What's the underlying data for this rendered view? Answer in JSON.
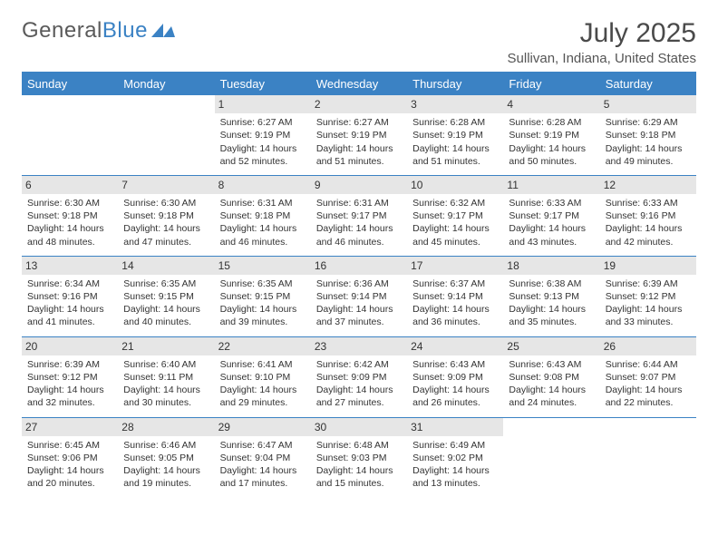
{
  "logo": {
    "text1": "General",
    "text2": "Blue"
  },
  "title": "July 2025",
  "location": "Sullivan, Indiana, United States",
  "colors": {
    "header_bg": "#3b82c4",
    "header_text": "#ffffff",
    "daynum_bg": "#e6e6e6",
    "border": "#3b82c4",
    "body_text": "#333333",
    "title_text": "#4a4a4a"
  },
  "weekdays": [
    "Sunday",
    "Monday",
    "Tuesday",
    "Wednesday",
    "Thursday",
    "Friday",
    "Saturday"
  ],
  "weeks": [
    [
      {
        "day": "",
        "sunrise": "",
        "sunset": "",
        "daylight_a": "",
        "daylight_b": "",
        "empty": true
      },
      {
        "day": "",
        "sunrise": "",
        "sunset": "",
        "daylight_a": "",
        "daylight_b": "",
        "empty": true
      },
      {
        "day": "1",
        "sunrise": "Sunrise: 6:27 AM",
        "sunset": "Sunset: 9:19 PM",
        "daylight_a": "Daylight: 14 hours",
        "daylight_b": "and 52 minutes."
      },
      {
        "day": "2",
        "sunrise": "Sunrise: 6:27 AM",
        "sunset": "Sunset: 9:19 PM",
        "daylight_a": "Daylight: 14 hours",
        "daylight_b": "and 51 minutes."
      },
      {
        "day": "3",
        "sunrise": "Sunrise: 6:28 AM",
        "sunset": "Sunset: 9:19 PM",
        "daylight_a": "Daylight: 14 hours",
        "daylight_b": "and 51 minutes."
      },
      {
        "day": "4",
        "sunrise": "Sunrise: 6:28 AM",
        "sunset": "Sunset: 9:19 PM",
        "daylight_a": "Daylight: 14 hours",
        "daylight_b": "and 50 minutes."
      },
      {
        "day": "5",
        "sunrise": "Sunrise: 6:29 AM",
        "sunset": "Sunset: 9:18 PM",
        "daylight_a": "Daylight: 14 hours",
        "daylight_b": "and 49 minutes."
      }
    ],
    [
      {
        "day": "6",
        "sunrise": "Sunrise: 6:30 AM",
        "sunset": "Sunset: 9:18 PM",
        "daylight_a": "Daylight: 14 hours",
        "daylight_b": "and 48 minutes."
      },
      {
        "day": "7",
        "sunrise": "Sunrise: 6:30 AM",
        "sunset": "Sunset: 9:18 PM",
        "daylight_a": "Daylight: 14 hours",
        "daylight_b": "and 47 minutes."
      },
      {
        "day": "8",
        "sunrise": "Sunrise: 6:31 AM",
        "sunset": "Sunset: 9:18 PM",
        "daylight_a": "Daylight: 14 hours",
        "daylight_b": "and 46 minutes."
      },
      {
        "day": "9",
        "sunrise": "Sunrise: 6:31 AM",
        "sunset": "Sunset: 9:17 PM",
        "daylight_a": "Daylight: 14 hours",
        "daylight_b": "and 46 minutes."
      },
      {
        "day": "10",
        "sunrise": "Sunrise: 6:32 AM",
        "sunset": "Sunset: 9:17 PM",
        "daylight_a": "Daylight: 14 hours",
        "daylight_b": "and 45 minutes."
      },
      {
        "day": "11",
        "sunrise": "Sunrise: 6:33 AM",
        "sunset": "Sunset: 9:17 PM",
        "daylight_a": "Daylight: 14 hours",
        "daylight_b": "and 43 minutes."
      },
      {
        "day": "12",
        "sunrise": "Sunrise: 6:33 AM",
        "sunset": "Sunset: 9:16 PM",
        "daylight_a": "Daylight: 14 hours",
        "daylight_b": "and 42 minutes."
      }
    ],
    [
      {
        "day": "13",
        "sunrise": "Sunrise: 6:34 AM",
        "sunset": "Sunset: 9:16 PM",
        "daylight_a": "Daylight: 14 hours",
        "daylight_b": "and 41 minutes."
      },
      {
        "day": "14",
        "sunrise": "Sunrise: 6:35 AM",
        "sunset": "Sunset: 9:15 PM",
        "daylight_a": "Daylight: 14 hours",
        "daylight_b": "and 40 minutes."
      },
      {
        "day": "15",
        "sunrise": "Sunrise: 6:35 AM",
        "sunset": "Sunset: 9:15 PM",
        "daylight_a": "Daylight: 14 hours",
        "daylight_b": "and 39 minutes."
      },
      {
        "day": "16",
        "sunrise": "Sunrise: 6:36 AM",
        "sunset": "Sunset: 9:14 PM",
        "daylight_a": "Daylight: 14 hours",
        "daylight_b": "and 37 minutes."
      },
      {
        "day": "17",
        "sunrise": "Sunrise: 6:37 AM",
        "sunset": "Sunset: 9:14 PM",
        "daylight_a": "Daylight: 14 hours",
        "daylight_b": "and 36 minutes."
      },
      {
        "day": "18",
        "sunrise": "Sunrise: 6:38 AM",
        "sunset": "Sunset: 9:13 PM",
        "daylight_a": "Daylight: 14 hours",
        "daylight_b": "and 35 minutes."
      },
      {
        "day": "19",
        "sunrise": "Sunrise: 6:39 AM",
        "sunset": "Sunset: 9:12 PM",
        "daylight_a": "Daylight: 14 hours",
        "daylight_b": "and 33 minutes."
      }
    ],
    [
      {
        "day": "20",
        "sunrise": "Sunrise: 6:39 AM",
        "sunset": "Sunset: 9:12 PM",
        "daylight_a": "Daylight: 14 hours",
        "daylight_b": "and 32 minutes."
      },
      {
        "day": "21",
        "sunrise": "Sunrise: 6:40 AM",
        "sunset": "Sunset: 9:11 PM",
        "daylight_a": "Daylight: 14 hours",
        "daylight_b": "and 30 minutes."
      },
      {
        "day": "22",
        "sunrise": "Sunrise: 6:41 AM",
        "sunset": "Sunset: 9:10 PM",
        "daylight_a": "Daylight: 14 hours",
        "daylight_b": "and 29 minutes."
      },
      {
        "day": "23",
        "sunrise": "Sunrise: 6:42 AM",
        "sunset": "Sunset: 9:09 PM",
        "daylight_a": "Daylight: 14 hours",
        "daylight_b": "and 27 minutes."
      },
      {
        "day": "24",
        "sunrise": "Sunrise: 6:43 AM",
        "sunset": "Sunset: 9:09 PM",
        "daylight_a": "Daylight: 14 hours",
        "daylight_b": "and 26 minutes."
      },
      {
        "day": "25",
        "sunrise": "Sunrise: 6:43 AM",
        "sunset": "Sunset: 9:08 PM",
        "daylight_a": "Daylight: 14 hours",
        "daylight_b": "and 24 minutes."
      },
      {
        "day": "26",
        "sunrise": "Sunrise: 6:44 AM",
        "sunset": "Sunset: 9:07 PM",
        "daylight_a": "Daylight: 14 hours",
        "daylight_b": "and 22 minutes."
      }
    ],
    [
      {
        "day": "27",
        "sunrise": "Sunrise: 6:45 AM",
        "sunset": "Sunset: 9:06 PM",
        "daylight_a": "Daylight: 14 hours",
        "daylight_b": "and 20 minutes."
      },
      {
        "day": "28",
        "sunrise": "Sunrise: 6:46 AM",
        "sunset": "Sunset: 9:05 PM",
        "daylight_a": "Daylight: 14 hours",
        "daylight_b": "and 19 minutes."
      },
      {
        "day": "29",
        "sunrise": "Sunrise: 6:47 AM",
        "sunset": "Sunset: 9:04 PM",
        "daylight_a": "Daylight: 14 hours",
        "daylight_b": "and 17 minutes."
      },
      {
        "day": "30",
        "sunrise": "Sunrise: 6:48 AM",
        "sunset": "Sunset: 9:03 PM",
        "daylight_a": "Daylight: 14 hours",
        "daylight_b": "and 15 minutes."
      },
      {
        "day": "31",
        "sunrise": "Sunrise: 6:49 AM",
        "sunset": "Sunset: 9:02 PM",
        "daylight_a": "Daylight: 14 hours",
        "daylight_b": "and 13 minutes."
      },
      {
        "day": "",
        "sunrise": "",
        "sunset": "",
        "daylight_a": "",
        "daylight_b": "",
        "empty": true
      },
      {
        "day": "",
        "sunrise": "",
        "sunset": "",
        "daylight_a": "",
        "daylight_b": "",
        "empty": true
      }
    ]
  ]
}
